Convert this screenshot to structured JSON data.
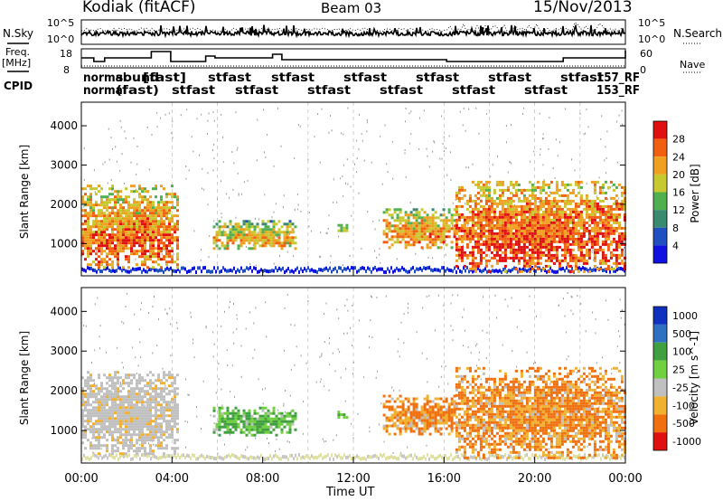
{
  "header": {
    "station": "Kodiak (fitACF)",
    "beam": "Beam 03",
    "date": "15/Nov/2013"
  },
  "strip": {
    "nsky_label": "N.Sky",
    "nsearch_label": "N.Search",
    "noise_tick_top": "10^5",
    "noise_tick_bottom": "10^0",
    "freq_label_1": "Freq.",
    "freq_label_2": "[MHz]",
    "freq_tick_top": "18",
    "freq_tick_bottom": "8",
    "nave_label": "Nave",
    "nave_tick_top": "60",
    "nave_tick_bottom": "0",
    "cpid_label": "CPID"
  },
  "colors": {
    "power_scale": [
      "#1010e0",
      "#2050c0",
      "#3a8a70",
      "#50b050",
      "#c8c830",
      "#f0a020",
      "#f06010",
      "#e01010"
    ],
    "velocity_scale": [
      "#1030c0",
      "#3070c0",
      "#40a040",
      "#70d040",
      "#c0c0c0",
      "#f0b030",
      "#f07010",
      "#e01010"
    ],
    "gray_scatter": "#c0c0c0"
  },
  "chart_data": [
    {
      "type": "heatmap",
      "title": "",
      "panel": "power",
      "xlabel": "Time UT",
      "ylabel": "Slant Range [km]",
      "x_ticks": [
        "00:00",
        "04:00",
        "08:00",
        "12:00",
        "16:00",
        "20:00",
        "00:00"
      ],
      "x_range_hours": [
        0,
        24
      ],
      "y_ticks": [
        1000,
        2000,
        3000,
        4000
      ],
      "ylim": [
        180,
        4600
      ],
      "colorbar": {
        "label": "Power [dB]",
        "ticks": [
          4,
          8,
          12,
          16,
          20,
          24,
          28
        ],
        "range": [
          0,
          32
        ]
      },
      "echo_regions": [
        {
          "t_start": 0.0,
          "t_end": 4.3,
          "range_low": 400,
          "range_high": 2500,
          "dominant_value_db": 20
        },
        {
          "t_start": 5.8,
          "t_end": 9.5,
          "range_low": 900,
          "range_high": 1600,
          "dominant_value_db": 16
        },
        {
          "t_start": 11.3,
          "t_end": 11.7,
          "range_low": 1300,
          "range_high": 1500,
          "dominant_value_db": 14
        },
        {
          "t_start": 13.3,
          "t_end": 16.5,
          "range_low": 900,
          "range_high": 1900,
          "dominant_value_db": 18
        },
        {
          "t_start": 16.5,
          "t_end": 24.0,
          "range_low": 300,
          "range_high": 2600,
          "dominant_value_db": 22
        }
      ]
    },
    {
      "type": "heatmap",
      "title": "",
      "panel": "velocity",
      "xlabel": "Time UT",
      "ylabel": "Slant Range [km]",
      "x_ticks": [
        "00:00",
        "04:00",
        "08:00",
        "12:00",
        "16:00",
        "20:00",
        "00:00"
      ],
      "x_range_hours": [
        0,
        24
      ],
      "y_ticks": [
        1000,
        2000,
        3000,
        4000
      ],
      "ylim": [
        180,
        4600
      ],
      "colorbar": {
        "label": "Velocity [m s^-1]",
        "ticks": [
          "1000",
          "500",
          "100",
          "25",
          "-25",
          "-100",
          "-500",
          "-1000"
        ]
      },
      "echo_regions": [
        {
          "t_start": 0.0,
          "t_end": 4.3,
          "range_low": 400,
          "range_high": 2500,
          "dominant_value_ms": 0
        },
        {
          "t_start": 5.8,
          "t_end": 9.5,
          "range_low": 900,
          "range_high": 1600,
          "dominant_value_ms": 200
        },
        {
          "t_start": 11.3,
          "t_end": 11.7,
          "range_low": 1300,
          "range_high": 1500,
          "dominant_value_ms": 300
        },
        {
          "t_start": 13.3,
          "t_end": 16.5,
          "range_low": 900,
          "range_high": 1900,
          "dominant_value_ms": -150
        },
        {
          "t_start": 16.5,
          "t_end": 24.0,
          "range_low": 300,
          "range_high": 2600,
          "dominant_value_ms": -80
        }
      ]
    }
  ]
}
